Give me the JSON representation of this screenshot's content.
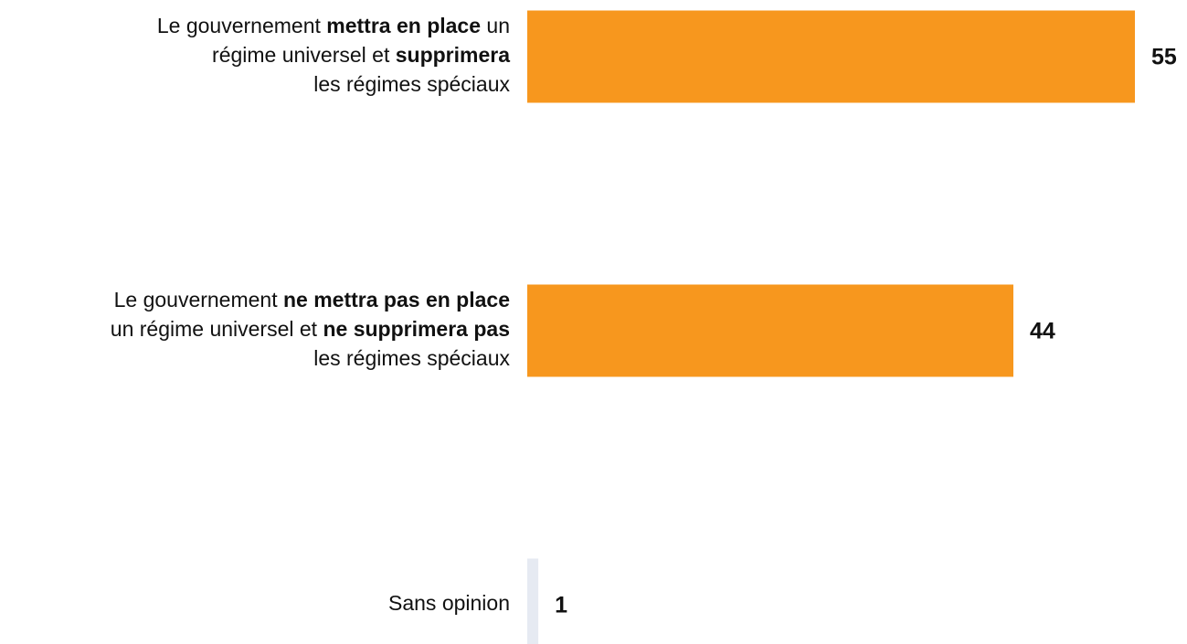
{
  "chart_data": {
    "type": "barh",
    "categories": [
      [
        [
          "Le gouvernement ",
          "mettra en place",
          " un"
        ],
        [
          "régime universel et ",
          "supprimera"
        ],
        [
          "les régimes spéciaux"
        ]
      ],
      [
        [
          "Le gouvernement ",
          "ne mettra pas en place"
        ],
        [
          "un régime universel et ",
          "ne supprimera pas"
        ],
        [
          "les régimes spéciaux"
        ]
      ],
      [
        [
          "Sans opinion"
        ]
      ]
    ],
    "values": [
      55,
      44,
      1
    ],
    "colors": [
      "#f7971e",
      "#f7971e",
      "#e6eaf2"
    ]
  }
}
